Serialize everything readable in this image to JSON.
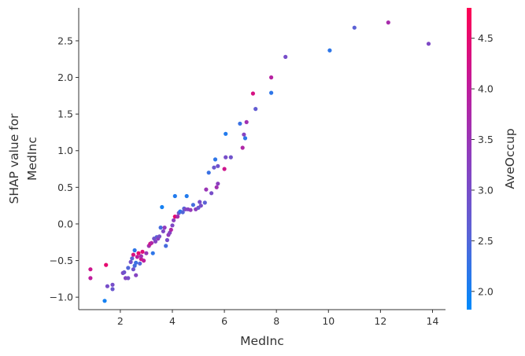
{
  "chart_data": {
    "type": "scatter",
    "xlabel": "MedInc",
    "ylabel": [
      "SHAP value for",
      "MedInc"
    ],
    "xlim": [
      0.4,
      14.5
    ],
    "ylim": [
      -1.17,
      2.95
    ],
    "x_ticks": [
      2,
      4,
      6,
      8,
      10,
      12,
      14
    ],
    "y_ticks": [
      -1.0,
      -0.5,
      0.0,
      0.5,
      1.0,
      1.5,
      2.0,
      2.5
    ],
    "y_tick_labels": [
      "−1.0",
      "−0.5",
      "0.0",
      "0.5",
      "1.0",
      "1.5",
      "2.0",
      "2.5"
    ],
    "grid": false,
    "colorbar": {
      "label": "AveOccup",
      "range": [
        1.82,
        4.8
      ],
      "ticks": [
        2.0,
        2.5,
        3.0,
        3.5,
        4.0,
        4.5
      ],
      "tick_labels": [
        "2.0",
        "2.5",
        "3.0",
        "3.5",
        "4.0",
        "4.5"
      ],
      "colormap": [
        "#008afb",
        "#5a63d6",
        "#8c3fbf",
        "#c21a9a",
        "#ff0052"
      ]
    },
    "points": [
      [
        0.85,
        -0.62,
        4.2
      ],
      [
        0.85,
        -0.74,
        4.0
      ],
      [
        1.4,
        -1.05,
        2.0
      ],
      [
        1.45,
        -0.56,
        4.5
      ],
      [
        1.5,
        -0.85,
        3.0
      ],
      [
        1.7,
        -0.83,
        3.0
      ],
      [
        1.7,
        -0.89,
        2.8
      ],
      [
        2.1,
        -0.67,
        3.1
      ],
      [
        2.15,
        -0.66,
        2.9
      ],
      [
        2.2,
        -0.74,
        3.2
      ],
      [
        2.3,
        -0.74,
        3.0
      ],
      [
        2.3,
        -0.6,
        2.5
      ],
      [
        2.4,
        -0.52,
        3.0
      ],
      [
        2.45,
        -0.47,
        2.6
      ],
      [
        2.5,
        -0.62,
        2.9
      ],
      [
        2.5,
        -0.42,
        4.3
      ],
      [
        2.55,
        -0.57,
        2.4
      ],
      [
        2.55,
        -0.36,
        2.2
      ],
      [
        2.6,
        -0.7,
        3.2
      ],
      [
        2.6,
        -0.53,
        2.3
      ],
      [
        2.65,
        -0.45,
        4.0
      ],
      [
        2.7,
        -0.4,
        4.5
      ],
      [
        2.75,
        -0.54,
        2.5
      ],
      [
        2.8,
        -0.48,
        4.2
      ],
      [
        2.8,
        -0.44,
        3.6
      ],
      [
        2.85,
        -0.38,
        4.4
      ],
      [
        2.9,
        -0.5,
        4.0
      ],
      [
        3.0,
        -0.4,
        3.5
      ],
      [
        3.1,
        -0.3,
        3.6
      ],
      [
        3.15,
        -0.27,
        4.3
      ],
      [
        3.2,
        -0.26,
        3.8
      ],
      [
        3.25,
        -0.4,
        2.2
      ],
      [
        3.3,
        -0.2,
        2.9
      ],
      [
        3.35,
        -0.24,
        3.2
      ],
      [
        3.4,
        -0.18,
        2.6
      ],
      [
        3.45,
        -0.2,
        3.3
      ],
      [
        3.5,
        -0.17,
        3.0
      ],
      [
        3.55,
        -0.05,
        2.4
      ],
      [
        3.6,
        0.23,
        2.0
      ],
      [
        3.65,
        -0.1,
        3.1
      ],
      [
        3.7,
        -0.05,
        3.4
      ],
      [
        3.75,
        -0.3,
        2.4
      ],
      [
        3.8,
        -0.22,
        3.0
      ],
      [
        3.85,
        -0.15,
        3.4
      ],
      [
        3.9,
        -0.12,
        3.2
      ],
      [
        3.95,
        -0.08,
        3.8
      ],
      [
        4.0,
        -0.02,
        3.1
      ],
      [
        4.05,
        0.05,
        3.3
      ],
      [
        4.1,
        0.1,
        4.5
      ],
      [
        4.1,
        0.38,
        2.1
      ],
      [
        4.2,
        0.1,
        3.7
      ],
      [
        4.25,
        0.15,
        2.9
      ],
      [
        4.3,
        0.17,
        2.2
      ],
      [
        4.4,
        0.16,
        2.5
      ],
      [
        4.45,
        0.21,
        2.5
      ],
      [
        4.5,
        0.2,
        3.1
      ],
      [
        4.55,
        0.38,
        2.1
      ],
      [
        4.6,
        0.2,
        3.2
      ],
      [
        4.7,
        0.19,
        3.4
      ],
      [
        4.8,
        0.26,
        2.4
      ],
      [
        4.9,
        0.2,
        3.3
      ],
      [
        5.0,
        0.22,
        2.8
      ],
      [
        5.05,
        0.3,
        3.0
      ],
      [
        5.1,
        0.25,
        3.0
      ],
      [
        5.25,
        0.29,
        2.6
      ],
      [
        5.3,
        0.47,
        3.5
      ],
      [
        5.4,
        0.7,
        2.3
      ],
      [
        5.5,
        0.42,
        3.0
      ],
      [
        5.7,
        0.5,
        3.6
      ],
      [
        5.75,
        0.55,
        3.3
      ],
      [
        5.6,
        0.77,
        2.8
      ],
      [
        5.65,
        0.88,
        2.2
      ],
      [
        5.75,
        0.79,
        2.9
      ],
      [
        6.0,
        0.75,
        4.2
      ],
      [
        6.05,
        1.23,
        2.1
      ],
      [
        6.05,
        0.91,
        3.0
      ],
      [
        6.25,
        0.91,
        2.9
      ],
      [
        6.6,
        1.37,
        2.3
      ],
      [
        6.7,
        1.04,
        3.8
      ],
      [
        6.75,
        1.22,
        3.2
      ],
      [
        6.8,
        1.17,
        2.2
      ],
      [
        6.85,
        1.39,
        3.6
      ],
      [
        7.1,
        1.78,
        4.3
      ],
      [
        7.2,
        1.57,
        2.7
      ],
      [
        7.8,
        1.79,
        2.2
      ],
      [
        7.8,
        2.0,
        3.9
      ],
      [
        8.35,
        2.28,
        3.0
      ],
      [
        10.05,
        2.37,
        2.2
      ],
      [
        11.0,
        2.68,
        2.6
      ],
      [
        12.3,
        2.75,
        3.7
      ],
      [
        13.85,
        2.46,
        3.1
      ]
    ]
  }
}
